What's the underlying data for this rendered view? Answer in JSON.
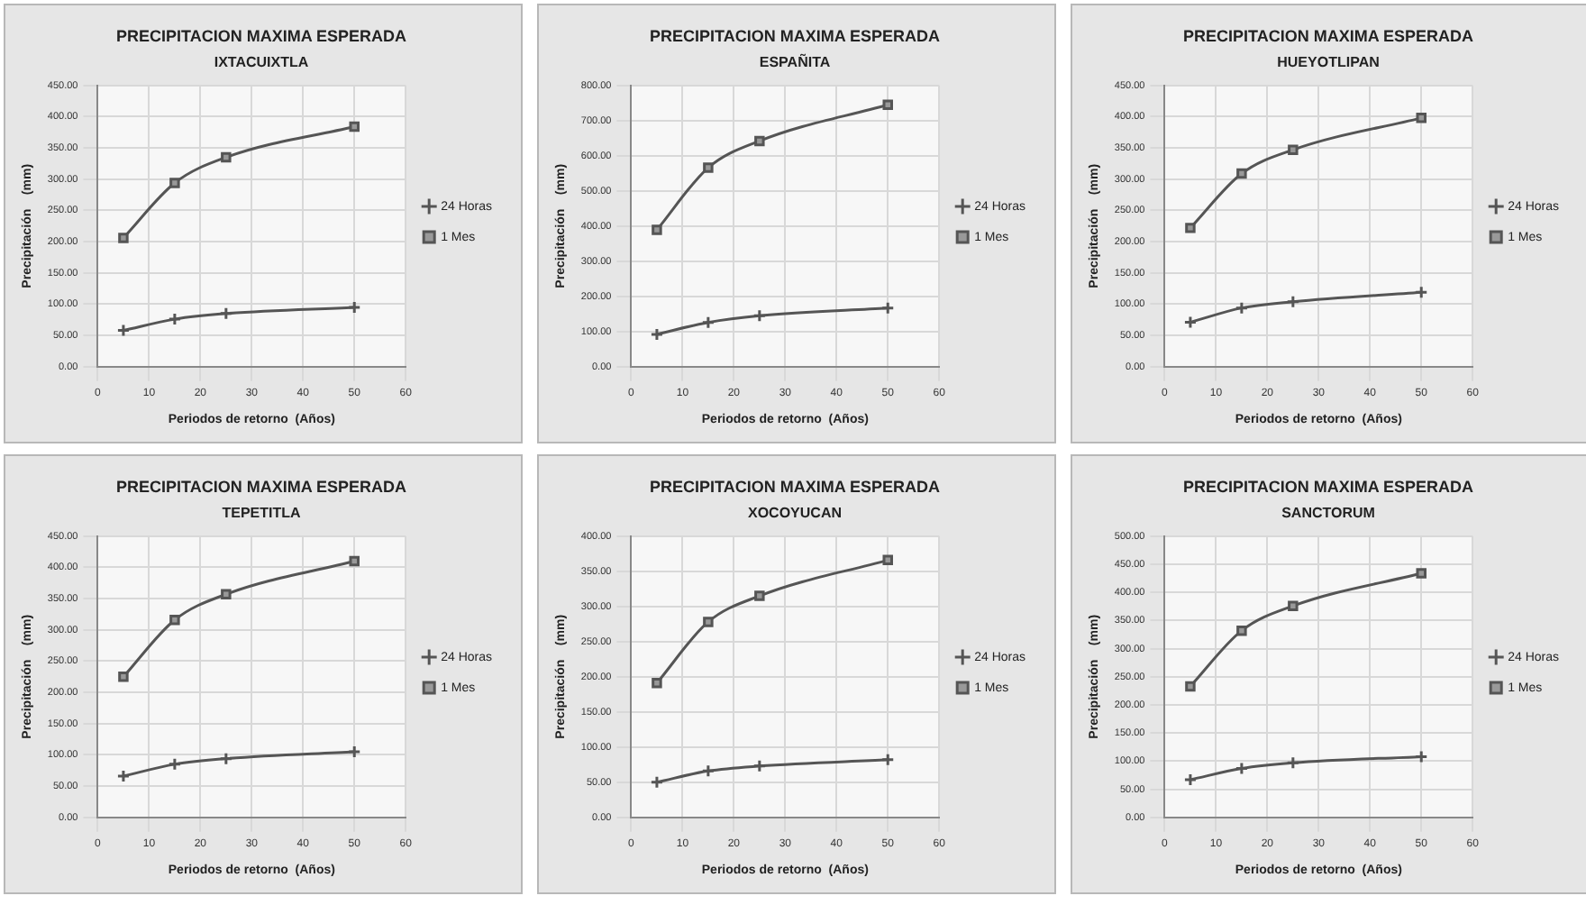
{
  "chart_data": [
    {
      "type": "line",
      "title": "PRECIPITACION MAXIMA ESPERADA",
      "subtitle": "IXTACUIXTLA",
      "xlabel": "Periodos de retorno  (Años)",
      "ylabel": "Precipitación    (mm)",
      "x": [
        5,
        15,
        25,
        50
      ],
      "series": [
        {
          "name": "24 Horas",
          "color": "#555555",
          "marker": "cross",
          "values": [
            58,
            76,
            85,
            95
          ]
        },
        {
          "name": "1 Mes",
          "color": "#555555",
          "marker": "square",
          "values": [
            206,
            294,
            335,
            384
          ]
        }
      ],
      "xlim": [
        0,
        60
      ],
      "xticks": [
        0,
        10,
        20,
        30,
        40,
        50,
        60
      ],
      "ylim": [
        0,
        450
      ],
      "yticks": [
        {
          "value": 0,
          "label": "0.00"
        },
        {
          "value": 50,
          "label": "50.00"
        },
        {
          "value": 100,
          "label": "100.00"
        },
        {
          "value": 150,
          "label": "150.00"
        },
        {
          "value": 200,
          "label": "200.00"
        },
        {
          "value": 250,
          "label": "250.00"
        },
        {
          "value": 300,
          "label": "300.00"
        },
        {
          "value": 350,
          "label": "350.00"
        },
        {
          "value": 400,
          "label": "400.00"
        },
        {
          "value": 450,
          "label": "450.00"
        }
      ],
      "grid": true,
      "legend": "right"
    },
    {
      "type": "line",
      "title": "PRECIPITACION MAXIMA ESPERADA",
      "subtitle": "ESPAÑITA",
      "xlabel": "Periodos de retorno  (Años)",
      "ylabel": "Precipitación    (mm)",
      "x": [
        5,
        15,
        25,
        50
      ],
      "series": [
        {
          "name": "24 Horas",
          "color": "#555555",
          "marker": "cross",
          "values": [
            92,
            126,
            145,
            167
          ]
        },
        {
          "name": "1 Mes",
          "color": "#555555",
          "marker": "square",
          "values": [
            389,
            566,
            642,
            745
          ]
        }
      ],
      "xlim": [
        0,
        60
      ],
      "xticks": [
        0,
        10,
        20,
        30,
        40,
        50,
        60
      ],
      "ylim": [
        0,
        800
      ],
      "yticks": [
        {
          "value": 0,
          "label": "0.00"
        },
        {
          "value": 100,
          "label": "100.00"
        },
        {
          "value": 200,
          "label": "200.00"
        },
        {
          "value": 300,
          "label": "300.00"
        },
        {
          "value": 400,
          "label": "400.00"
        },
        {
          "value": 500,
          "label": "500.00"
        },
        {
          "value": 600,
          "label": "600.00"
        },
        {
          "value": 700,
          "label": "700.00"
        },
        {
          "value": 800,
          "label": "800.00"
        }
      ],
      "grid": true,
      "legend": "right"
    },
    {
      "type": "line",
      "title": "PRECIPITACION MAXIMA ESPERADA",
      "subtitle": "HUEYOTLIPAN",
      "xlabel": "Periodos de retorno  (Años)",
      "ylabel": "Precipitación    (mm)",
      "x": [
        5,
        15,
        25,
        50
      ],
      "series": [
        {
          "name": "24 Horas",
          "color": "#555555",
          "marker": "cross",
          "values": [
            71,
            94,
            104,
            119
          ]
        },
        {
          "name": "1 Mes",
          "color": "#555555",
          "marker": "square",
          "values": [
            222,
            309,
            347,
            398
          ]
        }
      ],
      "xlim": [
        0,
        60
      ],
      "xticks": [
        0,
        10,
        20,
        30,
        40,
        50,
        60
      ],
      "ylim": [
        0,
        450
      ],
      "yticks": [
        {
          "value": 0,
          "label": "0.00"
        },
        {
          "value": 50,
          "label": "50.00"
        },
        {
          "value": 100,
          "label": "100.00"
        },
        {
          "value": 150,
          "label": "150.00"
        },
        {
          "value": 200,
          "label": "200.00"
        },
        {
          "value": 250,
          "label": "250.00"
        },
        {
          "value": 300,
          "label": "300.00"
        },
        {
          "value": 350,
          "label": "350.00"
        },
        {
          "value": 400,
          "label": "400.00"
        },
        {
          "value": 450,
          "label": "450.00"
        }
      ],
      "grid": true,
      "legend": "right"
    },
    {
      "type": "line",
      "title": "PRECIPITACION MAXIMA ESPERADA",
      "subtitle": "TEPETITLA",
      "xlabel": "Periodos de retorno  (Años)",
      "ylabel": "Precipitación    (mm)",
      "x": [
        5,
        15,
        25,
        50
      ],
      "series": [
        {
          "name": "24 Horas",
          "color": "#555555",
          "marker": "cross",
          "values": [
            66,
            85,
            94,
            105
          ]
        },
        {
          "name": "1 Mes",
          "color": "#555555",
          "marker": "square",
          "values": [
            225,
            316,
            357,
            410
          ]
        }
      ],
      "xlim": [
        0,
        60
      ],
      "xticks": [
        0,
        10,
        20,
        30,
        40,
        50,
        60
      ],
      "ylim": [
        0,
        450
      ],
      "yticks": [
        {
          "value": 0,
          "label": "0.00"
        },
        {
          "value": 50,
          "label": "50.00"
        },
        {
          "value": 100,
          "label": "100.00"
        },
        {
          "value": 150,
          "label": "150.00"
        },
        {
          "value": 200,
          "label": "200.00"
        },
        {
          "value": 250,
          "label": "250.00"
        },
        {
          "value": 300,
          "label": "300.00"
        },
        {
          "value": 350,
          "label": "350.00"
        },
        {
          "value": 400,
          "label": "400.00"
        },
        {
          "value": 450,
          "label": "450.00"
        }
      ],
      "grid": true,
      "legend": "right"
    },
    {
      "type": "line",
      "title": "PRECIPITACION MAXIMA ESPERADA",
      "subtitle": "XOCOYUCAN",
      "xlabel": "Periodos de retorno  (Años)",
      "ylabel": "Precipitación    (mm)",
      "x": [
        5,
        15,
        25,
        50
      ],
      "series": [
        {
          "name": "24 Horas",
          "color": "#555555",
          "marker": "cross",
          "values": [
            50,
            66,
            73,
            82
          ]
        },
        {
          "name": "1 Mes",
          "color": "#555555",
          "marker": "square",
          "values": [
            191,
            278,
            315,
            366
          ]
        }
      ],
      "xlim": [
        0,
        60
      ],
      "xticks": [
        0,
        10,
        20,
        30,
        40,
        50,
        60
      ],
      "ylim": [
        0,
        400
      ],
      "yticks": [
        {
          "value": 0,
          "label": "0.00"
        },
        {
          "value": 50,
          "label": "50.00"
        },
        {
          "value": 100,
          "label": "100.00"
        },
        {
          "value": 150,
          "label": "150.00"
        },
        {
          "value": 200,
          "label": "200.00"
        },
        {
          "value": 250,
          "label": "250.00"
        },
        {
          "value": 300,
          "label": "300.00"
        },
        {
          "value": 350,
          "label": "350.00"
        },
        {
          "value": 400,
          "label": "400.00"
        }
      ],
      "grid": true,
      "legend": "right"
    },
    {
      "type": "line",
      "title": "PRECIPITACION MAXIMA ESPERADA",
      "subtitle": "SANCTORUM",
      "xlabel": "Periodos de retorno  (Años)",
      "ylabel": "Precipitación    (mm)",
      "x": [
        5,
        15,
        25,
        50
      ],
      "series": [
        {
          "name": "24 Horas",
          "color": "#555555",
          "marker": "cross",
          "values": [
            67,
            87,
            97,
            108
          ]
        },
        {
          "name": "1 Mes",
          "color": "#555555",
          "marker": "square",
          "values": [
            233,
            332,
            376,
            434
          ]
        }
      ],
      "xlim": [
        0,
        60
      ],
      "xticks": [
        0,
        10,
        20,
        30,
        40,
        50,
        60
      ],
      "ylim": [
        0,
        500
      ],
      "yticks": [
        {
          "value": 0,
          "label": "0.00"
        },
        {
          "value": 50,
          "label": "50.00"
        },
        {
          "value": 100,
          "label": "100.00"
        },
        {
          "value": 150,
          "label": "150.00"
        },
        {
          "value": 200,
          "label": "200.00"
        },
        {
          "value": 250,
          "label": "250.00"
        },
        {
          "value": 300,
          "label": "300.00"
        },
        {
          "value": 350,
          "label": "350.00"
        },
        {
          "value": 400,
          "label": "400.00"
        },
        {
          "value": 450,
          "label": "450.00"
        },
        {
          "value": 500,
          "label": "500.00"
        }
      ],
      "grid": true,
      "legend": "right"
    }
  ]
}
